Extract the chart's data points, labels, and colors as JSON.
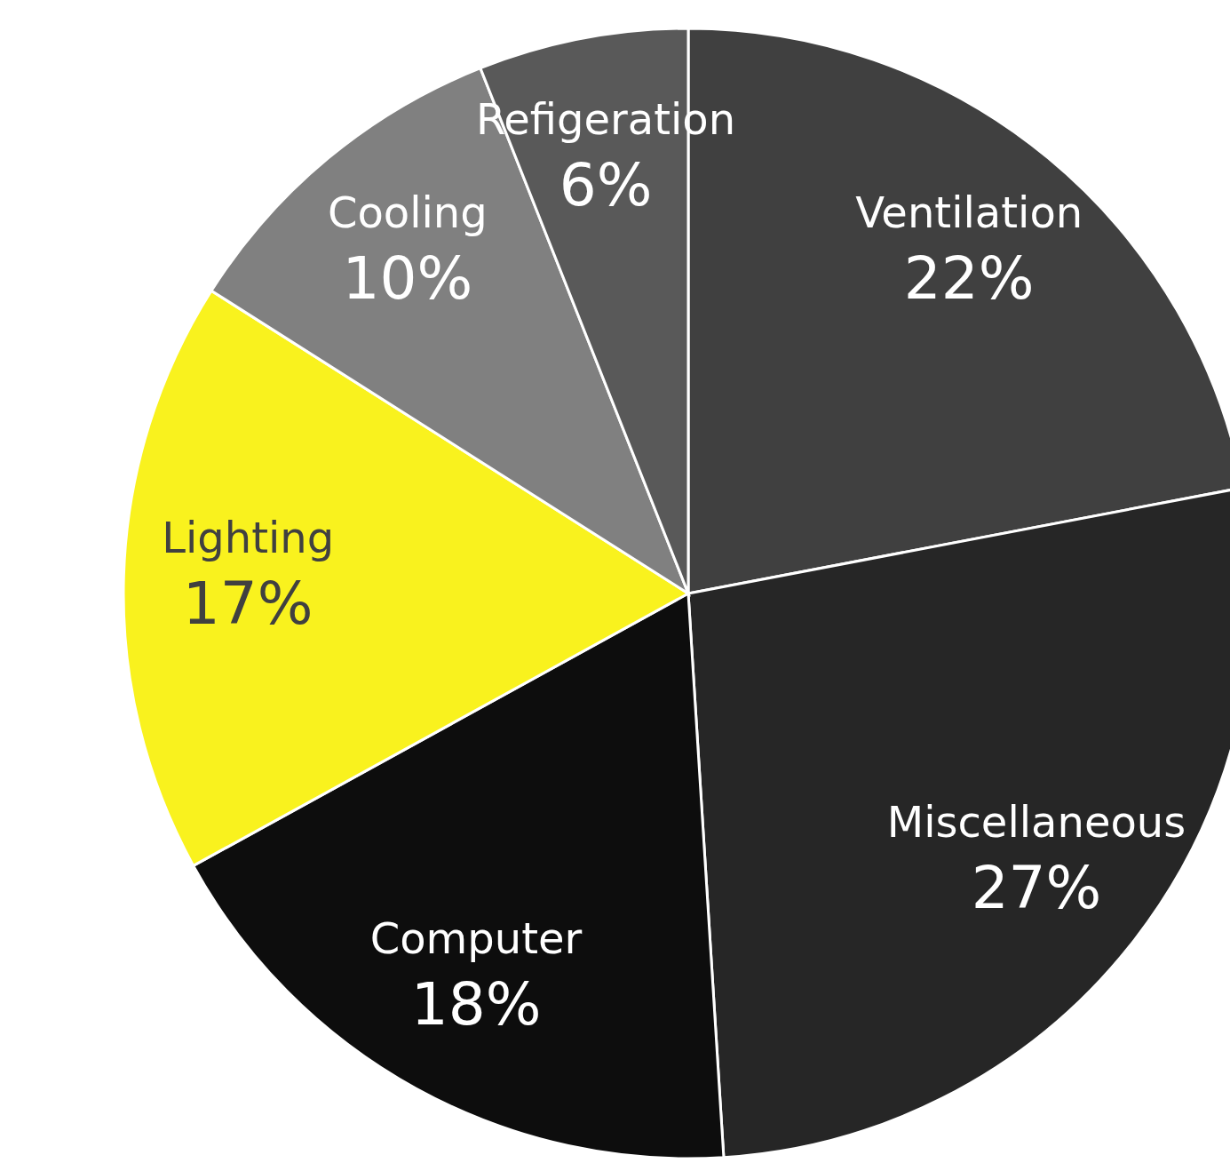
{
  "chart_data": {
    "type": "pie",
    "categories": [
      "Ventilation",
      "Miscellaneous",
      "Computer",
      "Lighting",
      "Cooling",
      "Refigeration"
    ],
    "values": [
      22,
      27,
      18,
      17,
      10,
      6
    ],
    "colors": [
      "#404040",
      "#262626",
      "#0d0d0d",
      "#f9f21e",
      "#808080",
      "#595959"
    ],
    "value_labels": [
      "22%",
      "27%",
      "18%",
      "17%",
      "10%",
      "6%"
    ]
  }
}
